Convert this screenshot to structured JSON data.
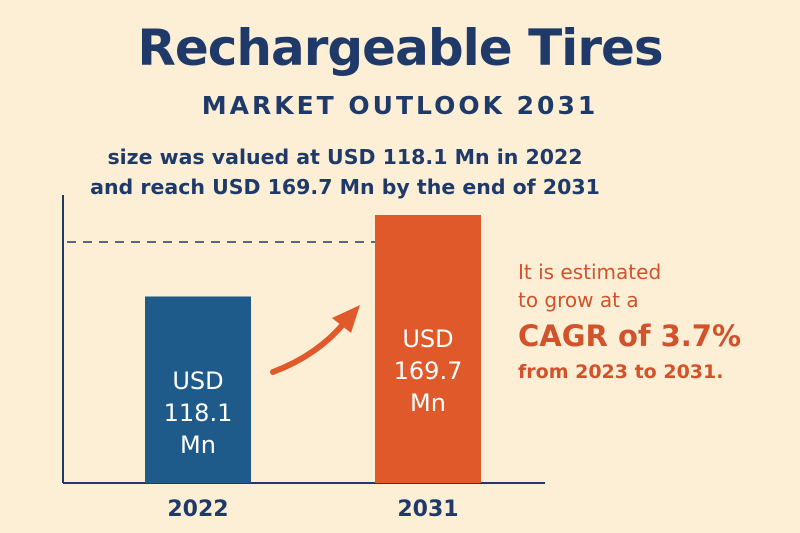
{
  "header": {
    "title": "Rechargeable Tires",
    "subtitle": "MARKET OUTLOOK 2031",
    "desc_line1": "size was valued at USD 118.1 Mn in 2022",
    "desc_line2": "and reach USD 169.7 Mn by the end of 2031"
  },
  "chart_data": {
    "type": "bar",
    "categories": [
      "2022",
      "2031"
    ],
    "values": [
      118.1,
      169.7
    ],
    "bar_colors": [
      "#1e5a8a",
      "#e0592a"
    ],
    "bar_labels": [
      [
        "USD",
        "118.1",
        "Mn"
      ],
      [
        "USD",
        "169.7",
        "Mn"
      ]
    ],
    "reference_line": {
      "value": 169.7,
      "style": "dashed"
    },
    "growth_arrow": true,
    "axis_color": "#1f3a68",
    "grid": false
  },
  "callout": {
    "line1": "It is estimated",
    "line2": "to grow at a",
    "line3": "CAGR of 3.7%",
    "line4": "from 2023 to 2031.",
    "color": "#d2522b"
  }
}
